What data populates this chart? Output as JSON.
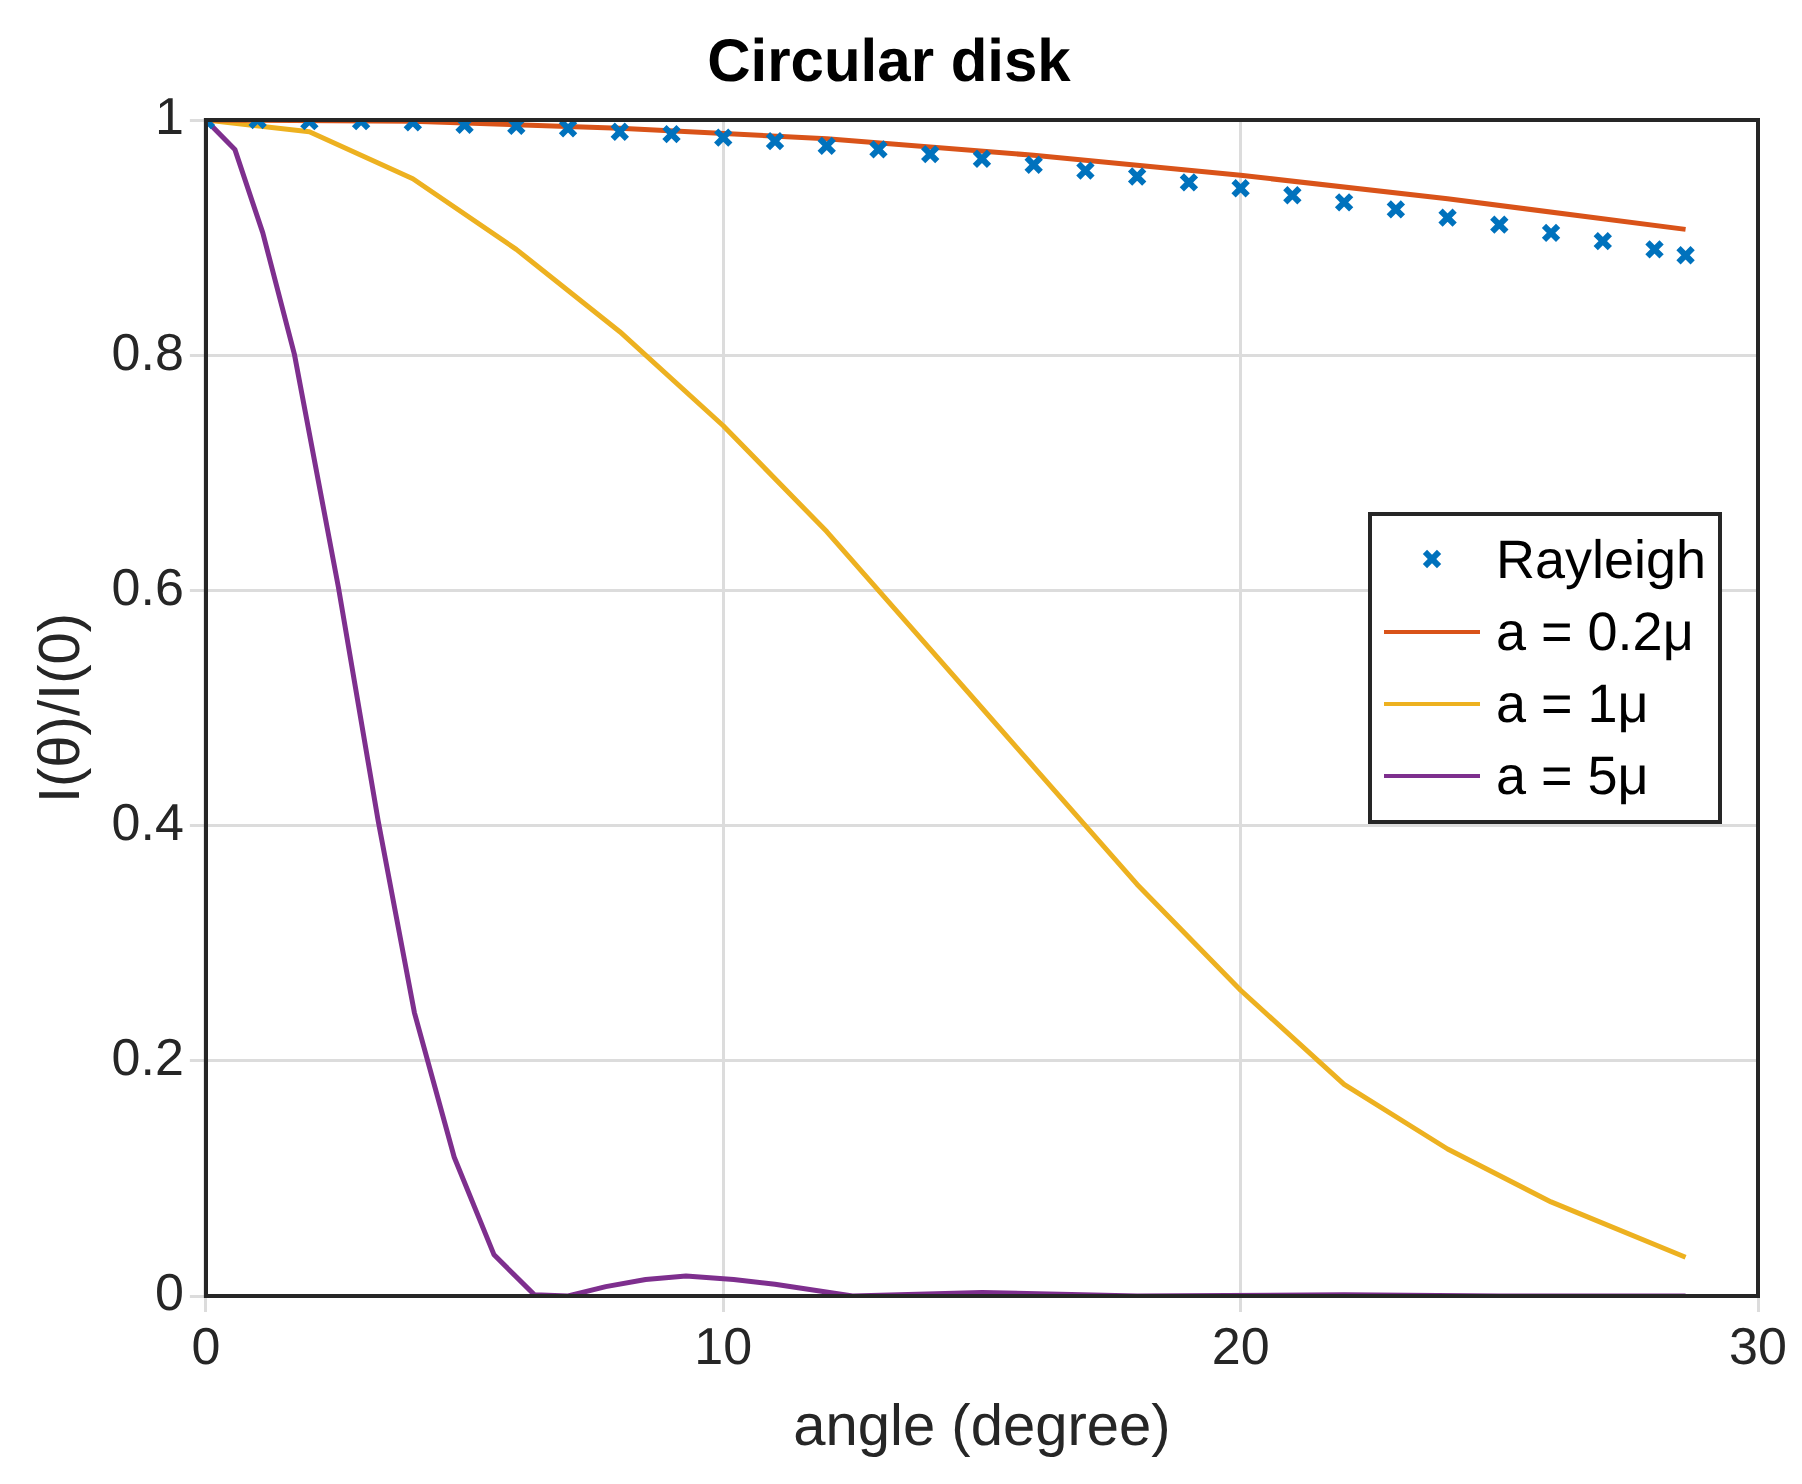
{
  "chart_data": {
    "type": "line",
    "title": "Circular disk",
    "xlabel": "angle (degree)",
    "ylabel": "I(θ)/I(0)",
    "xlim": [
      0,
      30
    ],
    "xticks": [
      0,
      10,
      20,
      30
    ],
    "ylim": [
      0,
      1
    ],
    "yticks": [
      0,
      0.2,
      0.4,
      0.6,
      0.8,
      1
    ],
    "grid": true,
    "legend": "right",
    "line_style": "solid",
    "series": [
      {
        "name": "Rayleigh",
        "type": "scatter",
        "marker": "cross",
        "color": "#0072bd",
        "x": [
          0,
          1,
          2,
          3,
          4,
          5,
          6,
          7,
          8,
          9,
          10,
          11,
          12,
          13,
          14,
          15,
          16,
          17,
          18,
          19,
          20,
          21,
          22,
          23,
          24,
          25,
          26,
          27,
          28,
          28.6
        ],
        "values": [
          1,
          1,
          0.999,
          0.999,
          0.998,
          0.996,
          0.995,
          0.993,
          0.99,
          0.988,
          0.985,
          0.982,
          0.978,
          0.975,
          0.971,
          0.967,
          0.962,
          0.957,
          0.952,
          0.947,
          0.942,
          0.936,
          0.93,
          0.924,
          0.917,
          0.911,
          0.904,
          0.897,
          0.89,
          0.885
        ]
      },
      {
        "name": "a = 0.2μ",
        "type": "line",
        "color": "#d95319",
        "x": [
          0,
          4,
          8,
          12,
          16,
          20,
          24,
          28.6
        ],
        "values": [
          1,
          0.999,
          0.993,
          0.984,
          0.97,
          0.953,
          0.933,
          0.907
        ]
      },
      {
        "name": "a = 1μ",
        "type": "line",
        "color": "#edb120",
        "x": [
          0,
          2,
          4,
          6,
          8,
          10,
          12,
          14,
          15,
          16,
          18,
          20,
          22,
          24,
          26,
          28.6
        ],
        "values": [
          1,
          0.99,
          0.95,
          0.89,
          0.82,
          0.74,
          0.65,
          0.55,
          0.5,
          0.45,
          0.35,
          0.26,
          0.18,
          0.125,
          0.08,
          0.033
        ]
      },
      {
        "name": "a = 5μ",
        "type": "line",
        "color": "#7e2f8e",
        "x": [
          0,
          0.56,
          1.1,
          1.71,
          2.56,
          3.33,
          4.03,
          4.8,
          5.57,
          6.35,
          7,
          7.73,
          8.5,
          9.28,
          10.2,
          11,
          12.5,
          15,
          18,
          22,
          25,
          28.6
        ],
        "values": [
          1,
          0.975,
          0.904,
          0.801,
          0.603,
          0.404,
          0.241,
          0.118,
          0.035,
          0.001,
          0,
          0.008,
          0.014,
          0.017,
          0.014,
          0.01,
          0,
          0.003,
          0,
          0.001,
          0,
          0
        ]
      }
    ]
  }
}
